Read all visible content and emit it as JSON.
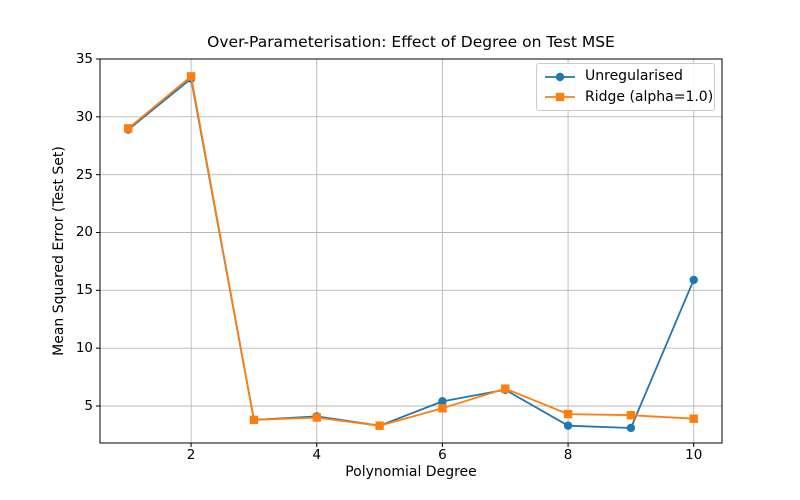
{
  "chart_data": {
    "type": "line",
    "title": "Over-Parameterisation: Effect of Degree on Test MSE",
    "xlabel": "Polynomial Degree",
    "ylabel": "Mean Squared Error (Test Set)",
    "x": [
      1,
      2,
      3,
      4,
      5,
      6,
      7,
      8,
      9,
      10
    ],
    "series": [
      {
        "name": "Unregularised",
        "color": "#1f77b4",
        "marker": "circle",
        "values": [
          28.9,
          33.3,
          3.8,
          4.1,
          3.3,
          5.4,
          6.4,
          3.3,
          3.1,
          15.9
        ]
      },
      {
        "name": "Ridge (alpha=1.0)",
        "color": "#ff7f0e",
        "marker": "square",
        "values": [
          29.0,
          33.5,
          3.8,
          4.0,
          3.3,
          4.8,
          6.5,
          4.3,
          4.2,
          3.9
        ]
      }
    ],
    "xticks": [
      2,
      4,
      6,
      8,
      10
    ],
    "yticks": [
      5,
      10,
      15,
      20,
      25,
      30,
      35
    ],
    "xlim": [
      0.55,
      10.45
    ],
    "ylim": [
      1.8,
      35.0
    ],
    "grid": true,
    "grid_color": "#b7b7b7",
    "axis_color": "#000000",
    "background_color": "#ffffff",
    "legend_position": "upper right"
  }
}
